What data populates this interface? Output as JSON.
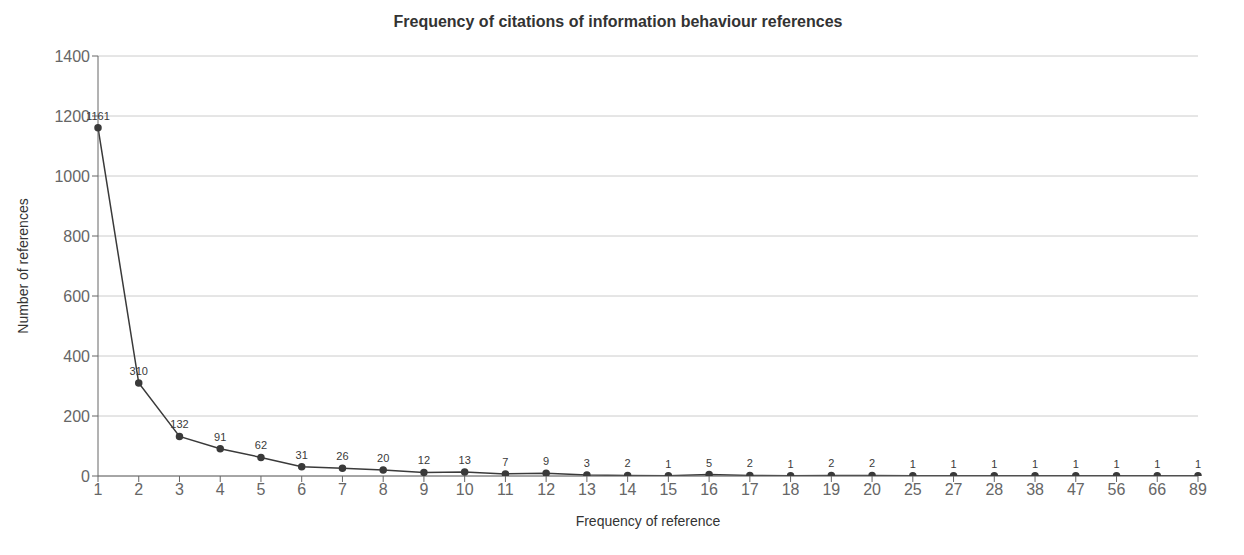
{
  "chart_data": {
    "type": "line",
    "title": "Frequency of citations of information behaviour references",
    "xlabel": "Frequency of reference",
    "ylabel": "Number of references",
    "categories": [
      "1",
      "2",
      "3",
      "4",
      "5",
      "6",
      "7",
      "8",
      "9",
      "10",
      "11",
      "12",
      "13",
      "14",
      "15",
      "16",
      "17",
      "18",
      "19",
      "20",
      "25",
      "27",
      "28",
      "38",
      "47",
      "56",
      "66",
      "89"
    ],
    "values": [
      1161,
      310,
      132,
      91,
      62,
      31,
      26,
      20,
      12,
      13,
      7,
      9,
      3,
      2,
      1,
      5,
      2,
      1,
      2,
      2,
      1,
      1,
      1,
      1,
      1,
      1,
      1,
      1
    ],
    "color": "#3a3a3a",
    "marker": "circle",
    "ylim": [
      0,
      1400
    ],
    "yticks": [
      0,
      200,
      400,
      600,
      800,
      1000,
      1200,
      1400
    ],
    "grid": true,
    "data_labels": true
  }
}
